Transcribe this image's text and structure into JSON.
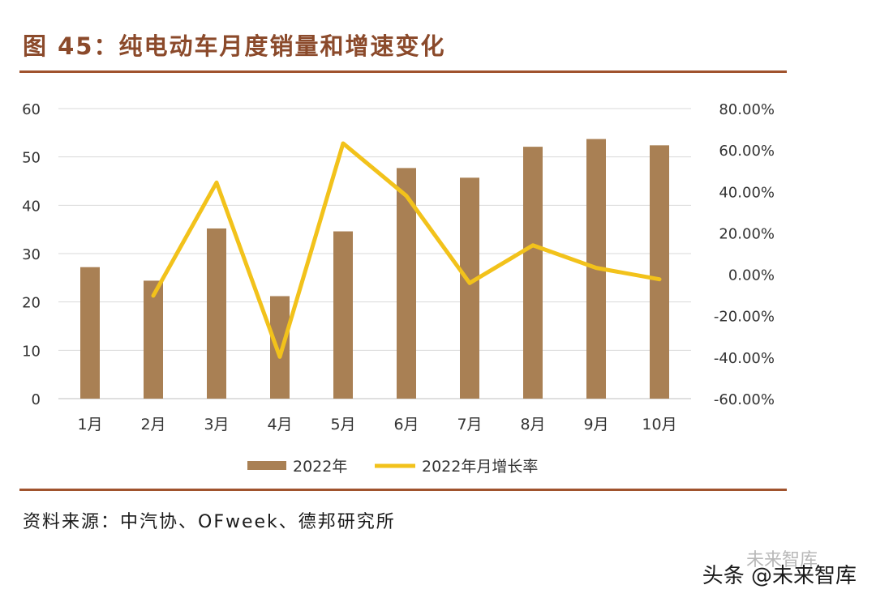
{
  "header": {
    "title": "图 45：纯电动车月度销量和增速变化"
  },
  "footer": {
    "source": "资料来源：中汽协、OFweek、德邦研究所",
    "watermark": "头条 @未来智库",
    "watermark_faint": "未来智库"
  },
  "colors": {
    "bar": "#a98054",
    "line": "#f2c21b",
    "grid": "#d9d9d9",
    "accent": "#a0532d"
  },
  "chart_data": {
    "type": "bar",
    "title": "纯电动车月度销量和增速变化",
    "categories": [
      "1月",
      "2月",
      "3月",
      "4月",
      "5月",
      "6月",
      "7月",
      "8月",
      "9月",
      "10月"
    ],
    "series": [
      {
        "name": "2022年",
        "type": "bar",
        "axis": "left",
        "values": [
          27.2,
          24.4,
          35.2,
          21.2,
          34.6,
          47.7,
          45.7,
          52.1,
          53.7,
          52.4
        ]
      },
      {
        "name": "2022年月增长率",
        "type": "line",
        "axis": "right",
        "values": [
          null,
          -10.3,
          44.3,
          -39.8,
          63.2,
          37.9,
          -4.2,
          14.0,
          3.1,
          -2.4
        ]
      }
    ],
    "ylim_left": [
      0,
      60
    ],
    "yticks_left": [
      "0",
      "10",
      "20",
      "30",
      "40",
      "50",
      "60"
    ],
    "ylim_right": [
      -60,
      80
    ],
    "yticks_right": [
      "-60.00%",
      "-40.00%",
      "-20.00%",
      "0.00%",
      "20.00%",
      "40.00%",
      "60.00%",
      "80.00%"
    ],
    "grid": true,
    "legend": "bottom"
  }
}
